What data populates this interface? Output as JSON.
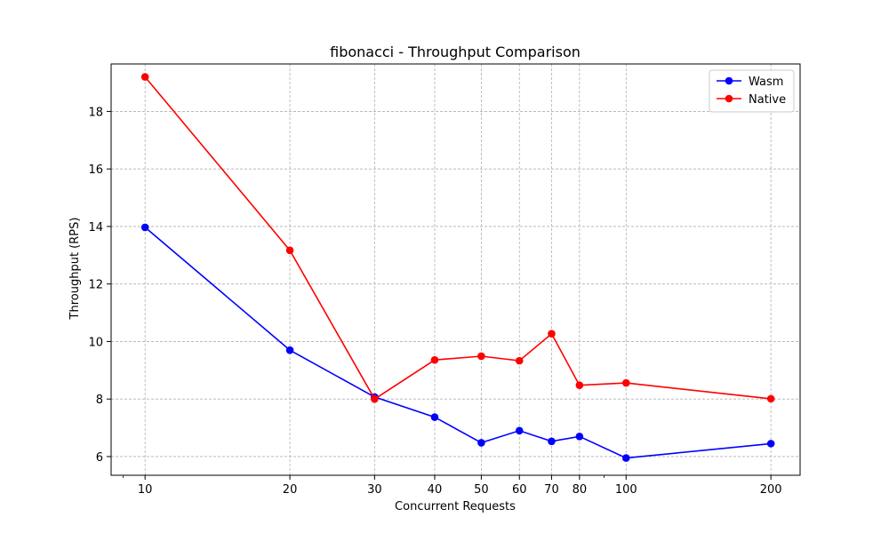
{
  "chart_data": {
    "type": "line",
    "title": "fibonacci - Throughput Comparison",
    "xlabel": "Concurrent Requests",
    "ylabel": "Throughput (RPS)",
    "x_scale": "log",
    "x": [
      10,
      20,
      30,
      40,
      50,
      60,
      70,
      80,
      100,
      200
    ],
    "x_ticks": [
      "10",
      "20",
      "30",
      "40",
      "50",
      "60",
      "70",
      "80",
      "100",
      "200"
    ],
    "y_ticks": [
      "6",
      "8",
      "10",
      "12",
      "14",
      "16",
      "18"
    ],
    "xlim": [
      8.5,
      230
    ],
    "ylim": [
      5.35,
      19.65
    ],
    "grid": true,
    "legend_position": "top-right",
    "series": [
      {
        "name": "Wasm",
        "color": "#0000ff",
        "values": [
          13.97,
          9.7,
          8.07,
          7.37,
          6.48,
          6.9,
          6.53,
          6.7,
          5.95,
          6.45
        ]
      },
      {
        "name": "Native",
        "color": "#ff0000",
        "values": [
          19.2,
          13.17,
          8.0,
          9.36,
          9.49,
          9.33,
          10.27,
          8.48,
          8.56,
          8.01
        ]
      }
    ]
  }
}
